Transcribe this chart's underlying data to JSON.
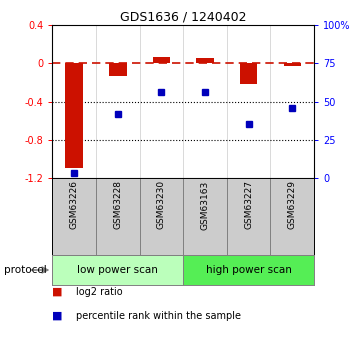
{
  "title": "GDS1636 / 1240402",
  "samples": [
    "GSM63226",
    "GSM63228",
    "GSM63230",
    "GSM63163",
    "GSM63227",
    "GSM63229"
  ],
  "log2_ratio": [
    -1.1,
    -0.13,
    0.07,
    0.05,
    -0.22,
    -0.03
  ],
  "percentile_rank": [
    3,
    42,
    56,
    56,
    35,
    46
  ],
  "ylim_left": [
    -1.2,
    0.4
  ],
  "ylim_right": [
    0,
    100
  ],
  "yticks_left": [
    0.4,
    0.0,
    -0.4,
    -0.8,
    -1.2
  ],
  "ytick_labels_left": [
    "0.4",
    "0",
    "-0.4",
    "-0.8",
    "-1.2"
  ],
  "yticks_right": [
    100,
    75,
    50,
    25,
    0
  ],
  "ytick_labels_right": [
    "100%",
    "75",
    "50",
    "25",
    "0"
  ],
  "hlines_dotted": [
    -0.4,
    -0.8
  ],
  "groups": [
    {
      "label": "low power scan",
      "indices": [
        0,
        1,
        2
      ],
      "color": "#bbffbb"
    },
    {
      "label": "high power scan",
      "indices": [
        3,
        4,
        5
      ],
      "color": "#55ee55"
    }
  ],
  "bar_color": "#cc1100",
  "dot_color": "#0000bb",
  "dashed_color": "#cc1100",
  "protocol_label": "protocol",
  "legend_items": [
    {
      "label": "log2 ratio",
      "color": "#cc1100"
    },
    {
      "label": "percentile rank within the sample",
      "color": "#0000bb"
    }
  ],
  "bar_width": 0.4,
  "dot_size": 5
}
